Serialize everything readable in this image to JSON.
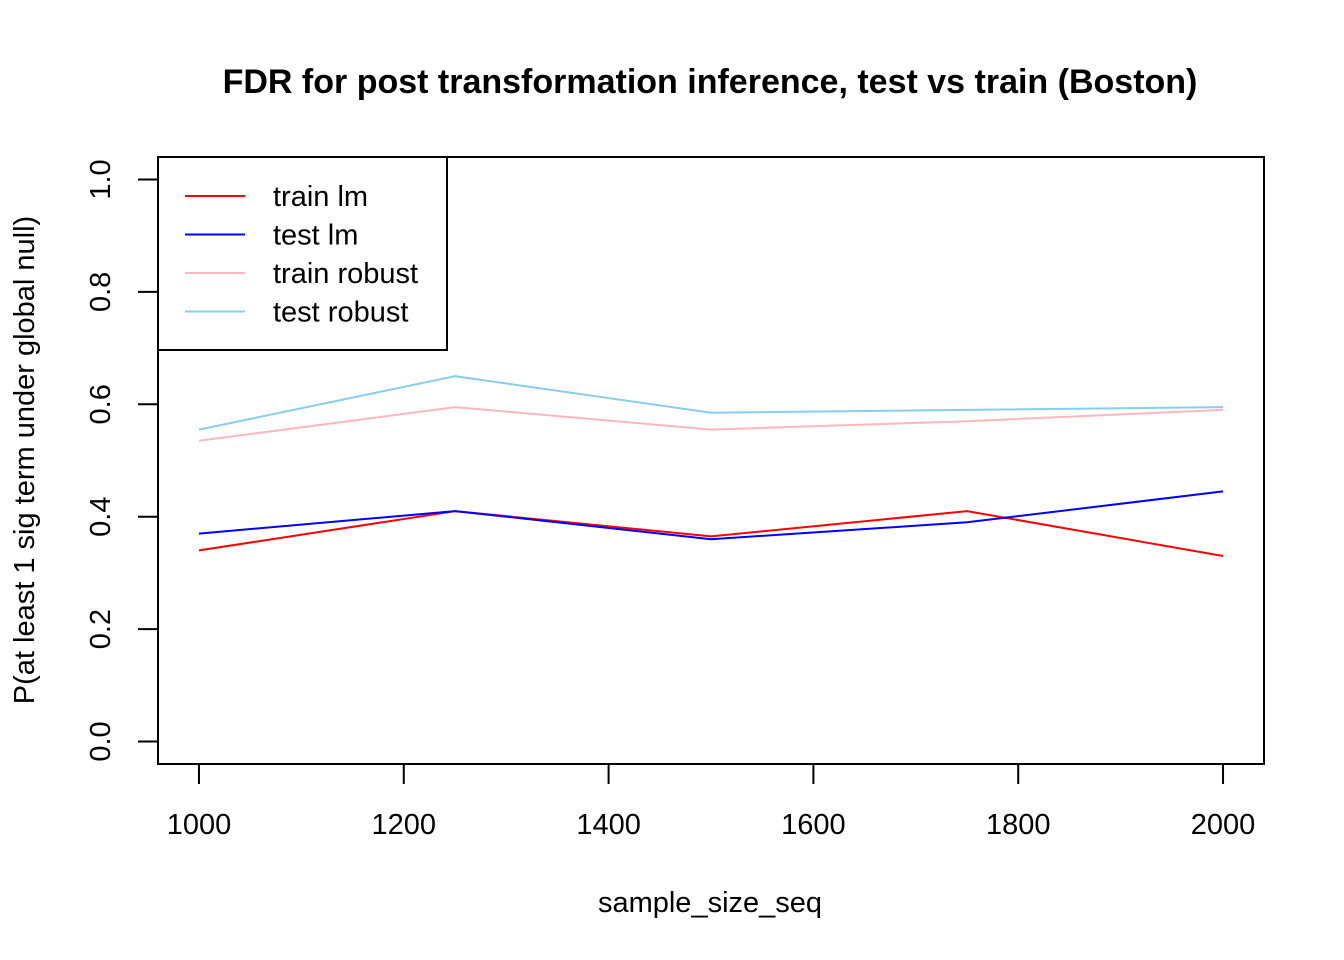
{
  "chart_data": {
    "type": "line",
    "title": "FDR for post transformation inference, test vs train (Boston)",
    "xlabel": "sample_size_seq",
    "ylabel": "P(at least 1 sig term under global null)",
    "x": [
      1000,
      1250,
      1500,
      1750,
      2000
    ],
    "xlim": [
      960,
      2040
    ],
    "ylim": [
      -0.04,
      1.04
    ],
    "x_ticks": [
      1000,
      1200,
      1400,
      1600,
      1800,
      2000
    ],
    "x_tick_labels": [
      "1000",
      "1200",
      "1400",
      "1600",
      "1800",
      "2000"
    ],
    "y_ticks": [
      0.0,
      0.2,
      0.4,
      0.6,
      0.8,
      1.0
    ],
    "y_tick_labels": [
      "0.0",
      "0.2",
      "0.4",
      "0.6",
      "0.8",
      "1.0"
    ],
    "grid": false,
    "legend_position": "top-left",
    "series": [
      {
        "name": "train lm",
        "color": "#ff0000",
        "values": [
          0.34,
          0.41,
          0.365,
          0.41,
          0.33
        ]
      },
      {
        "name": "test lm",
        "color": "#0000ff",
        "values": [
          0.37,
          0.41,
          0.36,
          0.39,
          0.445
        ]
      },
      {
        "name": "train robust",
        "color": "#ffb6c1",
        "values": [
          0.535,
          0.595,
          0.555,
          0.57,
          0.59
        ]
      },
      {
        "name": "test robust",
        "color": "#87ceeb",
        "values": [
          0.555,
          0.65,
          0.585,
          0.59,
          0.595
        ]
      }
    ]
  }
}
